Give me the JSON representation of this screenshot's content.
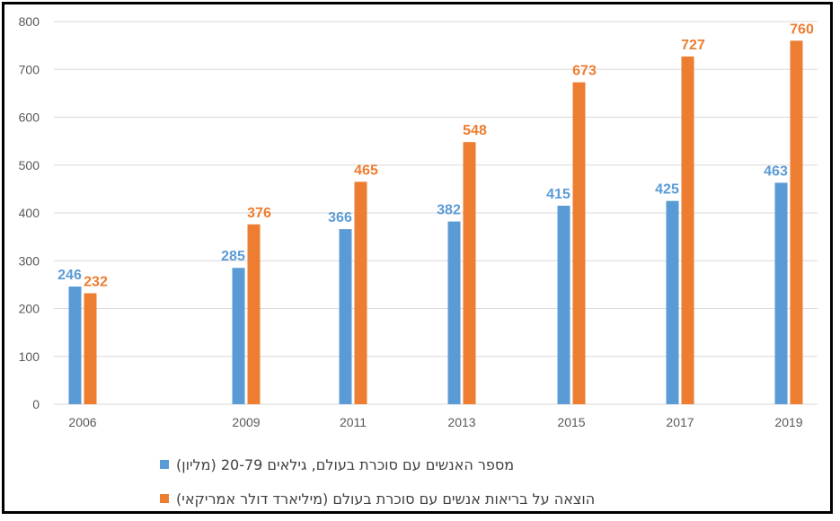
{
  "colors": {
    "series1": "#5B9BD5",
    "series2": "#ED7D31",
    "grid": "#D9D9D9",
    "axis_text": "#595959"
  },
  "chart_data": {
    "type": "bar",
    "categories": [
      "2006",
      "2009",
      "2011",
      "2013",
      "2015",
      "2017",
      "2019"
    ],
    "series": [
      {
        "name": "מספר האנשים עם סוכרת בעולם, גילאים 20-79 (מליון)",
        "values": [
          246,
          285,
          366,
          382,
          415,
          425,
          463
        ]
      },
      {
        "name": "הוצאה על בריאות אנשים עם סוכרת בעולם (מיליארד דולר אמריקאי)",
        "values": [
          232,
          376,
          465,
          548,
          673,
          727,
          760
        ]
      }
    ],
    "yticks": [
      "0",
      "100",
      "200",
      "300",
      "400",
      "500",
      "600",
      "700",
      "800"
    ],
    "ylim": [
      0,
      800
    ],
    "grid": true,
    "legend": "bottom",
    "data_labels": true
  }
}
